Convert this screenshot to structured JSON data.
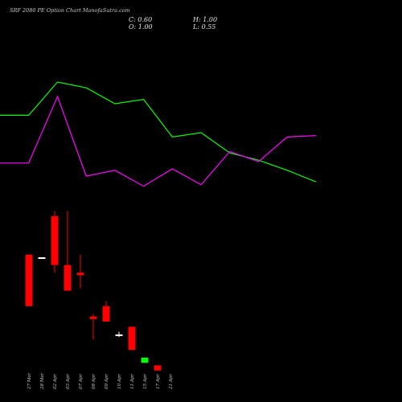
{
  "header": {
    "title": "SRF 2080  PE Option  Chart ManofaSutra.com",
    "close_label": "C:",
    "close_value": "0.60",
    "open_label": "O:",
    "open_value": "1.00",
    "high_label": "H:",
    "high_value": "1.00",
    "low_label": "L:",
    "low_value": "0.55"
  },
  "chart_data": [
    {
      "type": "line",
      "title": "",
      "x": [
        "27 Mar",
        "28 Mar",
        "02 Apr",
        "03 Apr",
        "07 Apr",
        "08 Apr",
        "09 Apr",
        "10 Apr",
        "11 Apr",
        "15 Apr",
        "17 Apr",
        "21 Apr"
      ],
      "series": [
        {
          "color": "#00ff00",
          "values": [
            0.62,
            0.62,
            0.85,
            0.81,
            0.7,
            0.73,
            0.47,
            0.5,
            0.36,
            0.31,
            0.24,
            0.16
          ]
        },
        {
          "color": "#ff00ff",
          "values": [
            0.29,
            0.29,
            0.75,
            0.2,
            0.24,
            0.13,
            0.25,
            0.14,
            0.37,
            0.3,
            0.47,
            0.48
          ]
        }
      ],
      "ylim": [
        0,
        1
      ]
    },
    {
      "type": "candlestick",
      "x": [
        "27 Mar",
        "28 Mar",
        "02 Apr",
        "03 Apr",
        "07 Apr",
        "08 Apr",
        "09 Apr",
        "10 Apr",
        "15 Apr",
        "17 Apr",
        "21 Apr"
      ],
      "x_tick_labels": [
        "27 Mar",
        "28 Mar",
        "02 Apr",
        "03 Apr",
        "07 Apr",
        "08 Apr",
        "09 Apr",
        "10 Apr",
        "11 Apr",
        "15 Apr",
        "17 Apr",
        "21 Apr"
      ],
      "colors": {
        "up": "#00ff00",
        "down": "#ff0000",
        "doji": "#ffffff"
      },
      "candles": [
        {
          "open": 7.6,
          "high": 7.6,
          "low": 5.6,
          "close": 5.6,
          "color": "#ff0000"
        },
        {
          "open": 7.5,
          "high": 7.5,
          "low": 7.5,
          "close": 7.5,
          "color": "#ffffff"
        },
        {
          "open": 9.1,
          "high": 9.3,
          "low": 6.9,
          "close": 7.2,
          "color": "#ff0000"
        },
        {
          "open": 7.2,
          "high": 9.3,
          "low": 6.2,
          "close": 6.2,
          "color": "#ff0000"
        },
        {
          "open": 6.9,
          "high": 7.6,
          "low": 6.3,
          "close": 6.8,
          "color": "#ff0000"
        },
        {
          "open": 5.2,
          "high": 5.3,
          "low": 4.3,
          "close": 5.1,
          "color": "#ff0000"
        },
        {
          "open": 5.6,
          "high": 5.8,
          "low": 5.0,
          "close": 5.0,
          "color": "#ff0000"
        },
        {
          "open": 4.5,
          "high": 4.6,
          "low": 4.4,
          "close": 4.5,
          "color": "#ffffff"
        },
        {
          "open": 4.8,
          "high": 4.8,
          "low": 3.9,
          "close": 3.9,
          "color": "#ff0000"
        },
        {
          "open": 3.4,
          "high": 3.6,
          "low": 3.4,
          "close": 3.6,
          "color": "#00ff00"
        },
        {
          "open": 3.3,
          "high": 3.3,
          "low": 3.1,
          "close": 3.1,
          "color": "#ff0000"
        }
      ],
      "ylim": [
        2.5,
        10
      ]
    }
  ]
}
